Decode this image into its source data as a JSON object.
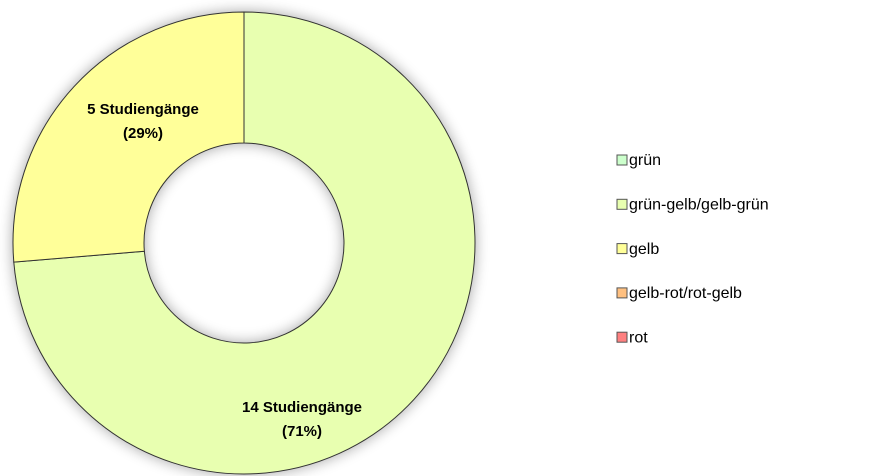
{
  "chart_data": {
    "type": "donut",
    "categories": [
      "grün",
      "grün-gelb/gelb-grün",
      "gelb",
      "gelb-rot/rot-gelb",
      "rot"
    ],
    "values": [
      0,
      14,
      5,
      0,
      0
    ],
    "value_labels": [
      null,
      [
        "14 Studiengänge",
        "(71%)"
      ],
      [
        "5 Studiengänge",
        "(29%)"
      ],
      null,
      null
    ],
    "colors": [
      "#ccffcc",
      "#e8ffb0",
      "#ffff99",
      "#ffc080",
      "#ff8080"
    ],
    "legend": "right"
  }
}
